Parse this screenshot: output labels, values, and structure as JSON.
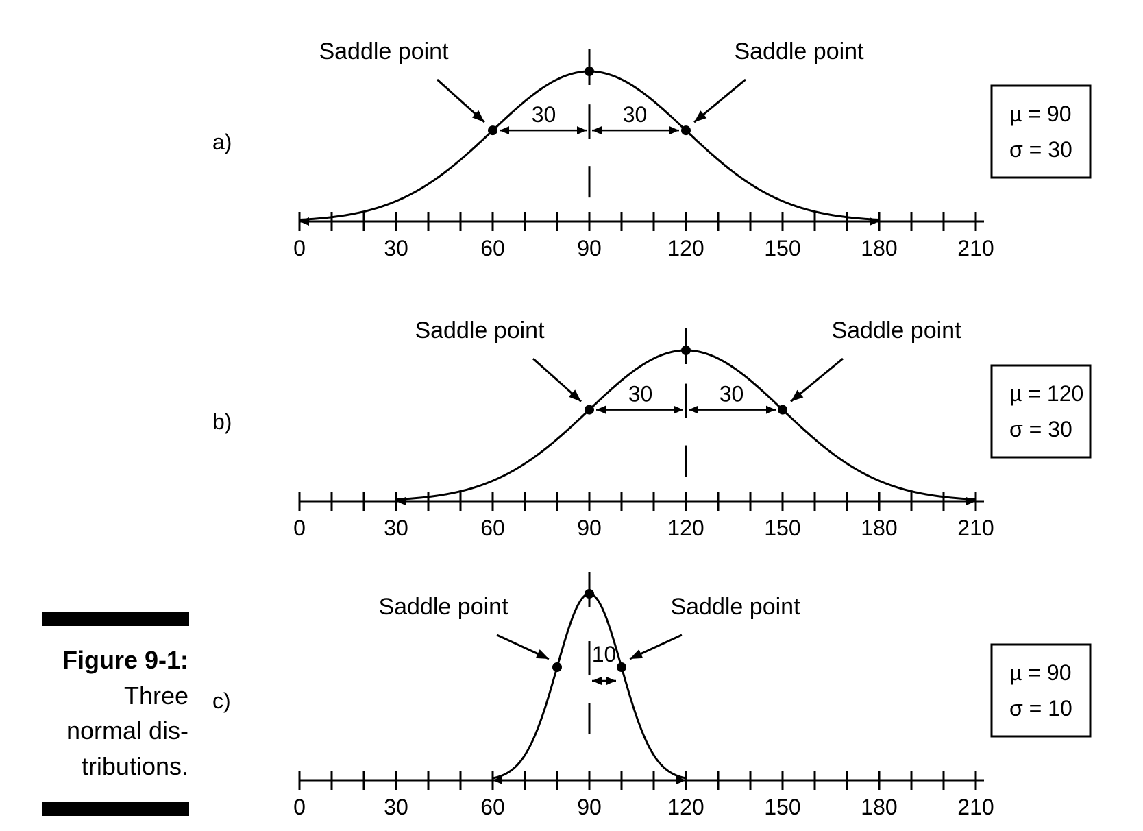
{
  "figure": {
    "caption_title": "Figure 9-1:",
    "caption_lines": [
      "Three",
      "normal dis-",
      "tributions."
    ]
  },
  "axis_ticks": [
    "0",
    "30",
    "60",
    "90",
    "120",
    "150",
    "180",
    "210"
  ],
  "saddle_label": "Saddle point",
  "chart_data": [
    {
      "type": "line",
      "panel_label": "a)",
      "mean": 90,
      "sd": 30,
      "mu_text": "µ = 90",
      "sigma_text": "σ = 30",
      "xlim": [
        0,
        210
      ],
      "tick_values": [
        0,
        30,
        60,
        90,
        120,
        150,
        180,
        210
      ],
      "saddle_points": [
        60,
        120
      ],
      "distance_labels": [
        "30",
        "30"
      ],
      "saddle_labels": [
        "Saddle point",
        "Saddle point"
      ]
    },
    {
      "type": "line",
      "panel_label": "b)",
      "mean": 120,
      "sd": 30,
      "mu_text": "µ = 120",
      "sigma_text": "σ = 30",
      "xlim": [
        0,
        210
      ],
      "tick_values": [
        0,
        30,
        60,
        90,
        120,
        150,
        180,
        210
      ],
      "saddle_points": [
        90,
        150
      ],
      "distance_labels": [
        "30",
        "30"
      ],
      "saddle_labels": [
        "Saddle point",
        "Saddle point"
      ]
    },
    {
      "type": "line",
      "panel_label": "c)",
      "mean": 90,
      "sd": 10,
      "mu_text": "µ = 90",
      "sigma_text": "σ = 10",
      "xlim": [
        0,
        210
      ],
      "tick_values": [
        0,
        30,
        60,
        90,
        120,
        150,
        180,
        210
      ],
      "saddle_points": [
        80,
        100
      ],
      "distance_labels": [
        "10"
      ],
      "saddle_labels": [
        "Saddle point",
        "Saddle point"
      ]
    }
  ]
}
